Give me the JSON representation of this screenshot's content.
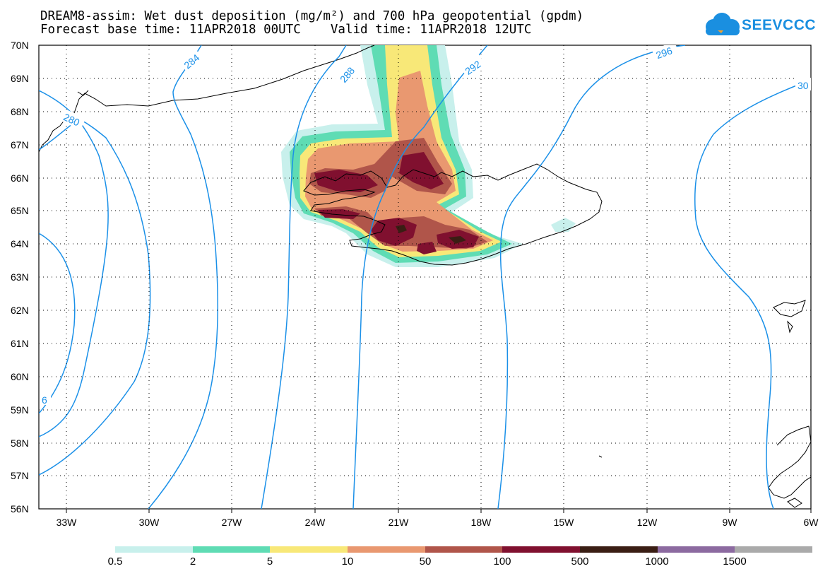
{
  "title": {
    "line1": "DREAM8-assim: Wet dust deposition (mg/m²) and 700 hPa geopotential (gpdm)",
    "line2": "Forecast base time: 11APR2018 00UTC    Valid time: 11APR2018 12UTC"
  },
  "logo": {
    "text": "SEEVCCC",
    "icon": "cloud-icon",
    "color": "#1a8fe0"
  },
  "map": {
    "lat_labels": [
      "70N",
      "69N",
      "68N",
      "67N",
      "66N",
      "65N",
      "64N",
      "63N",
      "62N",
      "61N",
      "60N",
      "59N",
      "58N",
      "57N",
      "56N"
    ],
    "lon_labels": [
      "33W",
      "30W",
      "27W",
      "24W",
      "21W",
      "18W",
      "15W",
      "12W",
      "9W",
      "6W"
    ],
    "lat_range": [
      56,
      70
    ],
    "lon_range": [
      -34.5,
      -6
    ],
    "contour_color": "#1a90e8",
    "contour_labels": [
      "284",
      "288",
      "292",
      "296",
      "280",
      "30",
      "6"
    ],
    "coastline_color": "#000000"
  },
  "legend": {
    "labels": [
      "0.5",
      "2",
      "5",
      "10",
      "50",
      "100",
      "500",
      "1000",
      "1500"
    ],
    "colors": [
      "#c8f0ec",
      "#5fdcb4",
      "#f8e878",
      "#e99870",
      "#b0554a",
      "#80102f",
      "#3a1e14",
      "#8c6aa0",
      "#aaaaaa"
    ]
  }
}
